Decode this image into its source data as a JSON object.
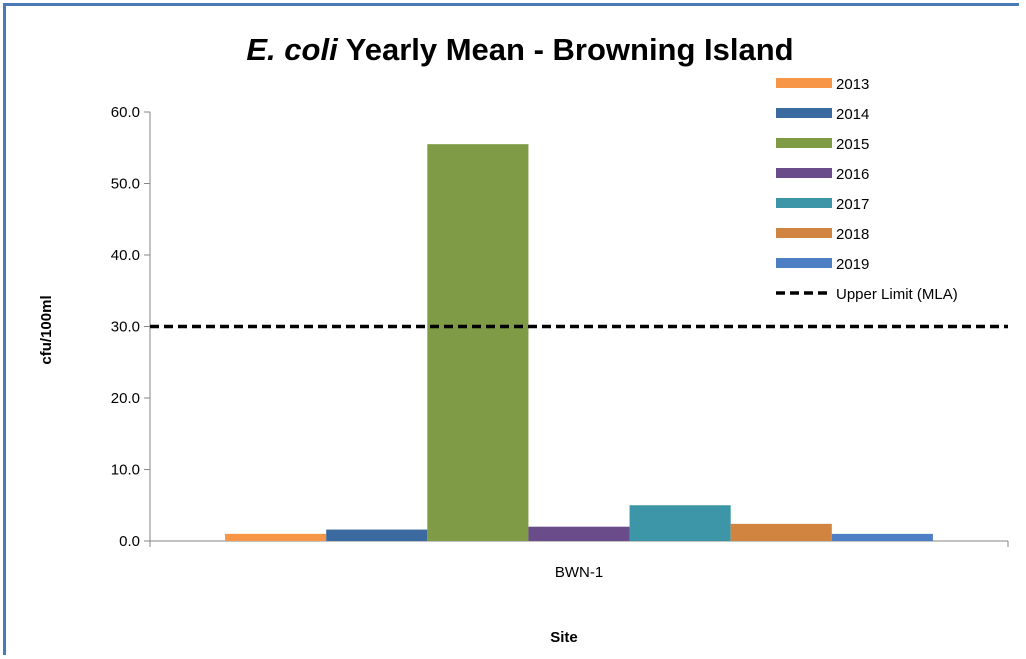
{
  "chart_data": {
    "type": "bar",
    "title_italic": "E. coli",
    "title_rest": " Yearly Mean - Browning Island",
    "title": "E. coli Yearly Mean - Browning Island",
    "xlabel": "Site",
    "ylabel": "cfu/100ml",
    "categories": [
      "BWN-1"
    ],
    "ylim": [
      0,
      60
    ],
    "yticks": [
      "0.0",
      "10.0",
      "20.0",
      "30.0",
      "40.0",
      "50.0",
      "60.0"
    ],
    "grid": false,
    "legend_position": "top-right",
    "series": [
      {
        "name": "2013",
        "values": [
          1.0
        ],
        "color": "#f79646"
      },
      {
        "name": "2014",
        "values": [
          1.6
        ],
        "color": "#3b6aa0"
      },
      {
        "name": "2015",
        "values": [
          55.5
        ],
        "color": "#7f9b45"
      },
      {
        "name": "2016",
        "values": [
          2.0
        ],
        "color": "#6a4c8a"
      },
      {
        "name": "2017",
        "values": [
          5.0
        ],
        "color": "#3c96a8"
      },
      {
        "name": "2018",
        "values": [
          2.4
        ],
        "color": "#d0843f"
      },
      {
        "name": "2019",
        "values": [
          1.0
        ],
        "color": "#4e7fc4"
      }
    ],
    "reference_line": {
      "name": "Upper Limit (MLA)",
      "value": 30.0,
      "color": "#000000",
      "style": "dashed"
    }
  }
}
